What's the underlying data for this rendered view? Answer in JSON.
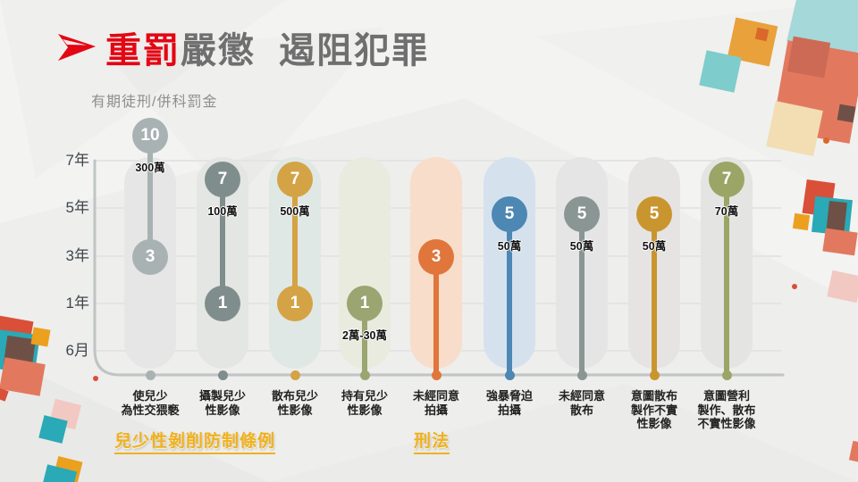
{
  "slide": {
    "title": {
      "emphasis": "重罰",
      "rest": "嚴懲  遏阻犯罪"
    },
    "axis_label": "有期徒刑/併科罰金"
  },
  "chart_data": {
    "type": "lollipop-range",
    "title": "重罰嚴懲 遏阻犯罪",
    "ylabel": "有期徒刑/併科罰金",
    "y_tick_labels": [
      "7年",
      "5年",
      "3年",
      "1年",
      "6月"
    ],
    "grid": "horizontal gridlines on",
    "legend": "none",
    "categories": [
      "使兒少為性交猥褻",
      "攝製兒少性影像",
      "散布兒少性影像",
      "持有兒少性影像",
      "未經同意拍攝",
      "強暴脅迫拍攝",
      "未經同意散布",
      "意圖散布製作不實性影像",
      "意圖營利製作、散布不實性影像"
    ],
    "columns": [
      {
        "label_lines": [
          "使兒少",
          "為性交猥褻"
        ],
        "max_years": 10,
        "min_years": 3,
        "fine": "300萬",
        "accent": "#a9b2b3",
        "pill": "#e5e6e5"
      },
      {
        "label_lines": [
          "攝製兒少",
          "性影像"
        ],
        "max_years": 7,
        "min_years": 1,
        "fine": "100萬",
        "accent": "#7f8e8c",
        "pill": "#e4e6e4"
      },
      {
        "label_lines": [
          "散布兒少",
          "性影像"
        ],
        "max_years": 7,
        "min_years": 1,
        "fine": "500萬",
        "accent": "#d4a345",
        "pill": "#dfe8e4"
      },
      {
        "label_lines": [
          "持有兒少",
          "性影像"
        ],
        "max_years": 1,
        "min_years": null,
        "fine": "2萬-30萬",
        "accent": "#9aa571",
        "pill": "#e9ebdf"
      },
      {
        "label_lines": [
          "未經同意",
          "拍攝"
        ],
        "max_years": 3,
        "min_years": null,
        "fine": "",
        "accent": "#e0763b",
        "pill": "#f8ddca"
      },
      {
        "label_lines": [
          "強暴脅迫",
          "拍攝"
        ],
        "max_years": 5,
        "min_years": null,
        "fine": "50萬",
        "accent": "#4d87b4",
        "pill": "#d5e2ee"
      },
      {
        "label_lines": [
          "未經同意",
          "散布"
        ],
        "max_years": 5,
        "min_years": null,
        "fine": "50萬",
        "accent": "#8a9694",
        "pill": "#e4e5e4"
      },
      {
        "label_lines": [
          "意圖散布",
          "製作不實",
          "性影像"
        ],
        "max_years": 5,
        "min_years": null,
        "fine": "50萬",
        "accent": "#c9952f",
        "pill": "#e5e4e2"
      },
      {
        "label_lines": [
          "意圖營利",
          "製作、散布",
          "不實性影像"
        ],
        "max_years": 7,
        "min_years": null,
        "fine": "70萬",
        "accent": "#9aa566",
        "pill": "#e4e5e2"
      }
    ],
    "groups": [
      {
        "label": "兒少性剝削防制條例"
      },
      {
        "label": "刑法"
      }
    ]
  },
  "theme": {
    "title_red": "#e30613",
    "title_gray": "#6f6f6f",
    "axis_line": "#bfc4c4",
    "gridline": "#e4e4e3",
    "tick_text": "#3f464b",
    "gold_label": "#efb11f",
    "fine_text": "#111111",
    "background": "#f3f3f2"
  },
  "decor_palette": {
    "teal": "#2aa9b6",
    "teal_mid": "#7ecccc",
    "teal_light": "#a5d8d8",
    "orange": "#e9a13b",
    "orange_deep": "#d9682a",
    "red": "#da4f38",
    "salmon": "#e2795f",
    "salmon_dark": "#cd6a55",
    "beige": "#f3ddb2",
    "pink": "#f2c8c2",
    "brown": "#6f5046",
    "gold": "#eba01e"
  }
}
